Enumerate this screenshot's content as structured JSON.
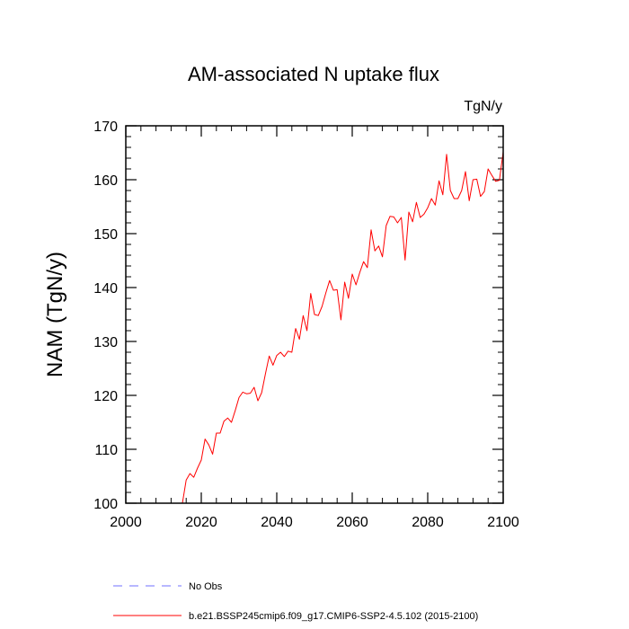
{
  "chart_data": {
    "type": "line",
    "title": "AM-associated N uptake flux",
    "units": "TgN/y",
    "xlabel": "",
    "ylabel": "NAM  (TgN/y)",
    "xlim": [
      2000,
      2100
    ],
    "ylim": [
      100,
      170
    ],
    "xticks": [
      2000,
      2020,
      2040,
      2060,
      2080,
      2100
    ],
    "yticks": [
      100,
      110,
      120,
      130,
      140,
      150,
      160,
      170
    ],
    "grid": false,
    "legend": [
      {
        "label": "No Obs",
        "color": "#7070ff",
        "style": "dashed"
      },
      {
        "label": "b.e21.BSSP245cmip6.f09_g17.CMIP6-SSP2-4.5.102 (2015-2100)",
        "color": "#ff0000",
        "style": "solid"
      }
    ],
    "series": [
      {
        "name": "b.e21.BSSP245cmip6.f09_g17.CMIP6-SSP2-4.5.102 (2015-2100)",
        "color": "#ff0000",
        "x": [
          2015,
          2016,
          2017,
          2018,
          2019,
          2020,
          2021,
          2022,
          2023,
          2024,
          2025,
          2026,
          2027,
          2028,
          2029,
          2030,
          2031,
          2032,
          2033,
          2034,
          2035,
          2036,
          2037,
          2038,
          2039,
          2040,
          2041,
          2042,
          2043,
          2044,
          2045,
          2046,
          2047,
          2048,
          2049,
          2050,
          2051,
          2052,
          2053,
          2054,
          2055,
          2056,
          2057,
          2058,
          2059,
          2060,
          2061,
          2062,
          2063,
          2064,
          2065,
          2066,
          2067,
          2068,
          2069,
          2070,
          2071,
          2072,
          2073,
          2074,
          2075,
          2076,
          2077,
          2078,
          2079,
          2080,
          2081,
          2082,
          2083,
          2084,
          2085,
          2086,
          2087,
          2088,
          2089,
          2090,
          2091,
          2092,
          2093,
          2094,
          2095,
          2096,
          2097,
          2098,
          2099,
          2100
        ],
        "values": [
          100,
          104.3,
          105.5,
          104.8,
          106.5,
          108,
          111.9,
          110.8,
          109.1,
          113,
          113,
          115.2,
          115.8,
          115,
          117.2,
          119.6,
          120.6,
          120.3,
          120.4,
          121.5,
          119,
          120.5,
          124,
          127.3,
          125.6,
          127.4,
          128,
          127.2,
          128.2,
          128,
          132.4,
          130.4,
          134.8,
          132,
          138.9,
          135,
          134.8,
          136.5,
          139,
          141.3,
          139.5,
          139.6,
          134,
          141,
          138,
          142.5,
          140.5,
          142.8,
          144.8,
          143.7,
          150.7,
          146.8,
          147.7,
          145.7,
          151.5,
          153.2,
          153.1,
          152,
          153,
          145.1,
          154,
          152.2,
          155.8,
          153,
          153.6,
          154.8,
          156.5,
          155.3,
          159.8,
          157.2,
          164.7,
          158,
          156.5,
          156.5,
          158,
          161.5,
          156.1,
          160,
          160.1,
          156.9,
          157.8,
          162,
          160.8,
          159.7,
          159.9,
          165.2
        ]
      }
    ]
  }
}
